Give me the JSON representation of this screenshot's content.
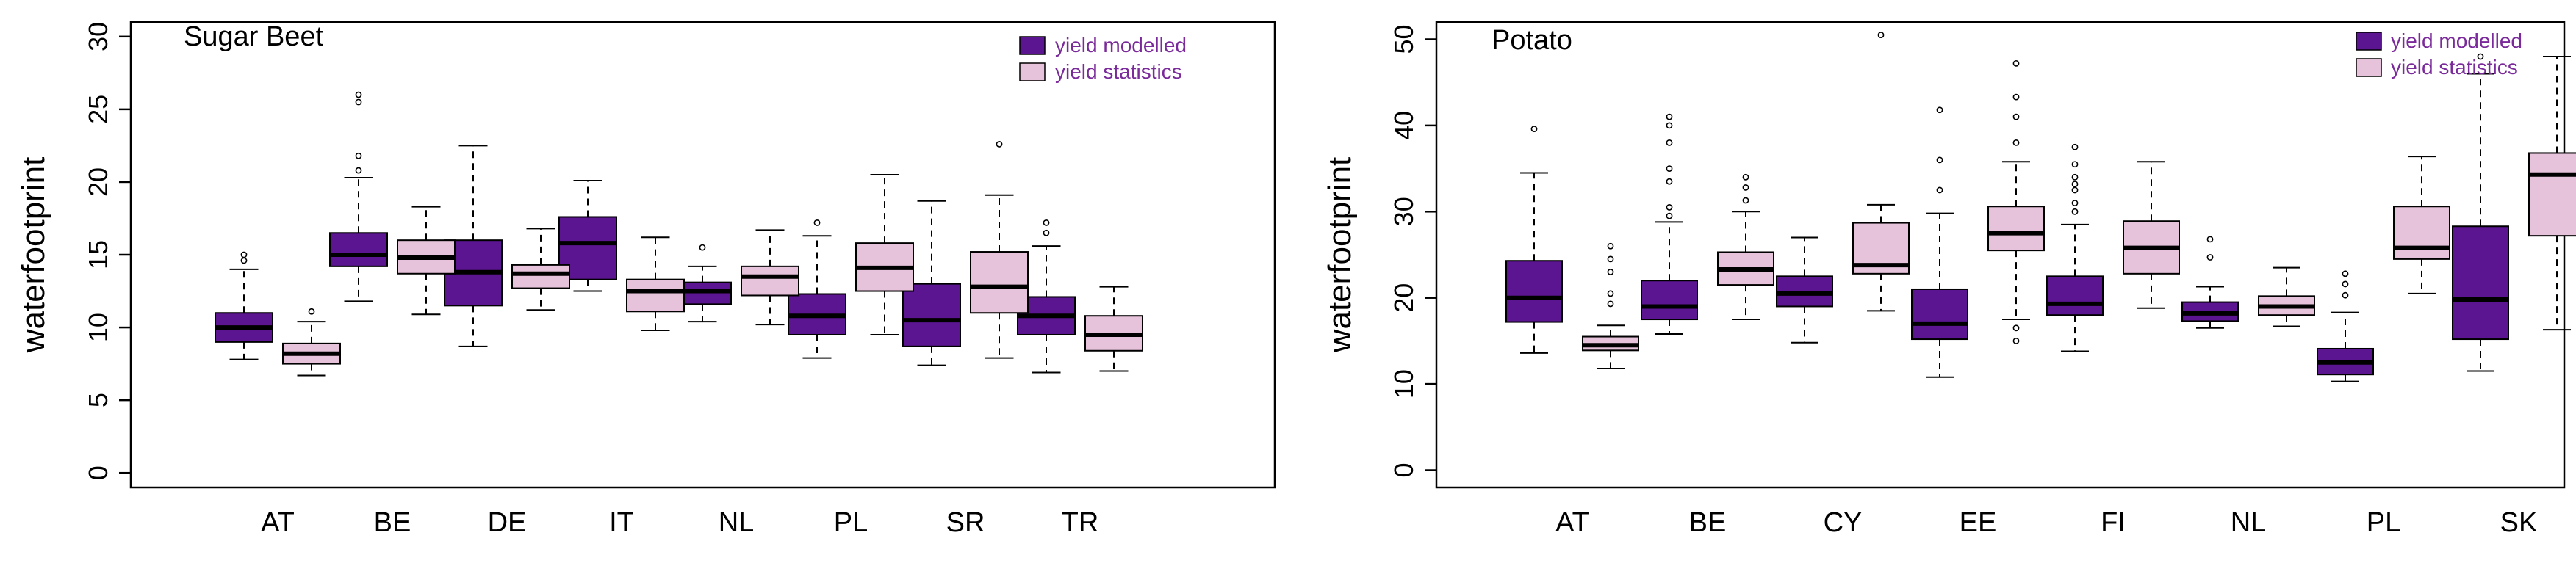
{
  "colors": {
    "modelled": "#5b1590",
    "statistics": "#e7c3db",
    "legend_text": "#7a2a9a",
    "axis": "#000000"
  },
  "chart_data": [
    {
      "type": "boxplot",
      "title": "Sugar Beet",
      "xlabel": "",
      "ylabel": "waterfootprint",
      "ylim": [
        -1,
        31
      ],
      "yticks": [
        0,
        5,
        10,
        15,
        20,
        25,
        30
      ],
      "categories": [
        "AT",
        "BE",
        "DE",
        "IT",
        "NL",
        "PL",
        "SR",
        "TR"
      ],
      "legend": {
        "position": "top-right",
        "entries": [
          "yield modelled",
          "yield statistics"
        ]
      },
      "series": [
        {
          "name": "yield modelled",
          "boxes": [
            {
              "min": 7.8,
              "q1": 9.0,
              "median": 10.0,
              "q3": 11.0,
              "max": 14.0,
              "outliers": [
                14.6,
                15.0
              ]
            },
            {
              "min": 11.8,
              "q1": 14.2,
              "median": 15.0,
              "q3": 16.5,
              "max": 20.3,
              "outliers": [
                20.8,
                21.8,
                25.5,
                26.0
              ]
            },
            {
              "min": 8.7,
              "q1": 11.5,
              "median": 13.8,
              "q3": 16.0,
              "max": 22.5,
              "outliers": []
            },
            {
              "min": 12.5,
              "q1": 13.3,
              "median": 15.8,
              "q3": 17.6,
              "max": 20.1,
              "outliers": []
            },
            {
              "min": 10.4,
              "q1": 11.6,
              "median": 12.5,
              "q3": 13.1,
              "max": 14.2,
              "outliers": [
                15.5
              ]
            },
            {
              "min": 7.9,
              "q1": 9.5,
              "median": 10.8,
              "q3": 12.3,
              "max": 16.3,
              "outliers": [
                17.2
              ]
            },
            {
              "min": 7.4,
              "q1": 8.7,
              "median": 10.5,
              "q3": 13.0,
              "max": 18.7,
              "outliers": []
            },
            {
              "min": 6.9,
              "q1": 9.5,
              "median": 10.8,
              "q3": 12.1,
              "max": 15.6,
              "outliers": [
                16.5,
                17.2
              ]
            }
          ]
        },
        {
          "name": "yield statistics",
          "boxes": [
            {
              "min": 6.7,
              "q1": 7.5,
              "median": 8.2,
              "q3": 8.9,
              "max": 10.4,
              "outliers": [
                11.1
              ]
            },
            {
              "min": 10.9,
              "q1": 13.7,
              "median": 14.8,
              "q3": 16.0,
              "max": 18.3,
              "outliers": []
            },
            {
              "min": 11.2,
              "q1": 12.7,
              "median": 13.7,
              "q3": 14.3,
              "max": 16.8,
              "outliers": []
            },
            {
              "min": 9.8,
              "q1": 11.1,
              "median": 12.5,
              "q3": 13.3,
              "max": 16.2,
              "outliers": []
            },
            {
              "min": 10.2,
              "q1": 12.2,
              "median": 13.5,
              "q3": 14.2,
              "max": 16.7,
              "outliers": []
            },
            {
              "min": 9.5,
              "q1": 12.5,
              "median": 14.1,
              "q3": 15.8,
              "max": 20.5,
              "outliers": []
            },
            {
              "min": 7.9,
              "q1": 11.0,
              "median": 12.8,
              "q3": 15.2,
              "max": 19.1,
              "outliers": [
                22.6
              ]
            },
            {
              "min": 7.0,
              "q1": 8.4,
              "median": 9.5,
              "q3": 10.8,
              "max": 12.8,
              "outliers": []
            }
          ]
        }
      ]
    },
    {
      "type": "boxplot",
      "title": "Potato",
      "xlabel": "",
      "ylabel": "waterfootprint",
      "ylim": [
        -2,
        52
      ],
      "yticks": [
        0,
        10,
        20,
        30,
        40,
        50
      ],
      "categories": [
        "AT",
        "BE",
        "CY",
        "EE",
        "FI",
        "NL",
        "PL",
        "SK"
      ],
      "legend": {
        "position": "top-right",
        "entries": [
          "yield modelled",
          "yield statistics"
        ]
      },
      "series": [
        {
          "name": "yield modelled",
          "boxes": [
            {
              "min": 13.6,
              "q1": 17.2,
              "median": 20.0,
              "q3": 24.3,
              "max": 34.5,
              "outliers": [
                39.6
              ]
            },
            {
              "min": 15.8,
              "q1": 17.5,
              "median": 19.0,
              "q3": 22.0,
              "max": 28.8,
              "outliers": [
                29.5,
                30.5,
                33.5,
                35.0,
                38.0,
                40.0,
                41.0
              ]
            },
            {
              "min": 14.8,
              "q1": 19.0,
              "median": 20.5,
              "q3": 22.5,
              "max": 27.0,
              "outliers": []
            },
            {
              "min": 10.8,
              "q1": 15.2,
              "median": 17.0,
              "q3": 21.0,
              "max": 29.8,
              "outliers": [
                32.5,
                36.0,
                41.8
              ]
            },
            {
              "min": 13.8,
              "q1": 18.0,
              "median": 19.3,
              "q3": 22.5,
              "max": 28.5,
              "outliers": [
                30.0,
                31.0,
                32.5,
                33.2,
                34.0,
                35.5,
                37.5
              ]
            },
            {
              "min": 16.5,
              "q1": 17.3,
              "median": 18.2,
              "q3": 19.5,
              "max": 21.3,
              "outliers": [
                24.7,
                26.8
              ]
            },
            {
              "min": 10.3,
              "q1": 11.1,
              "median": 12.5,
              "q3": 14.1,
              "max": 18.3,
              "outliers": [
                20.3,
                21.6,
                22.8
              ]
            },
            {
              "min": 11.5,
              "q1": 15.2,
              "median": 19.8,
              "q3": 28.3,
              "max": 46.0,
              "outliers": [
                48.0
              ]
            }
          ]
        },
        {
          "name": "yield statistics",
          "boxes": [
            {
              "min": 11.8,
              "q1": 13.9,
              "median": 14.5,
              "q3": 15.5,
              "max": 16.8,
              "outliers": [
                19.3,
                20.5,
                23.0,
                24.5,
                26.0
              ]
            },
            {
              "min": 17.5,
              "q1": 21.5,
              "median": 23.3,
              "q3": 25.3,
              "max": 30.0,
              "outliers": [
                31.3,
                32.8,
                34.0
              ]
            },
            {
              "min": 18.5,
              "q1": 22.8,
              "median": 23.8,
              "q3": 28.7,
              "max": 30.8,
              "outliers": [
                50.5
              ]
            },
            {
              "min": 17.5,
              "q1": 25.5,
              "median": 27.5,
              "q3": 30.6,
              "max": 35.8,
              "outliers": [
                15.0,
                16.5,
                38.0,
                41.0,
                43.3,
                47.2
              ]
            },
            {
              "min": 18.8,
              "q1": 22.8,
              "median": 25.8,
              "q3": 28.9,
              "max": 35.8,
              "outliers": []
            },
            {
              "min": 16.7,
              "q1": 18.0,
              "median": 19.0,
              "q3": 20.2,
              "max": 23.5,
              "outliers": []
            },
            {
              "min": 20.5,
              "q1": 24.5,
              "median": 25.8,
              "q3": 30.6,
              "max": 36.4,
              "outliers": []
            },
            {
              "min": 16.3,
              "q1": 27.2,
              "median": 34.3,
              "q3": 36.8,
              "max": 48.0,
              "outliers": []
            }
          ]
        }
      ]
    }
  ]
}
